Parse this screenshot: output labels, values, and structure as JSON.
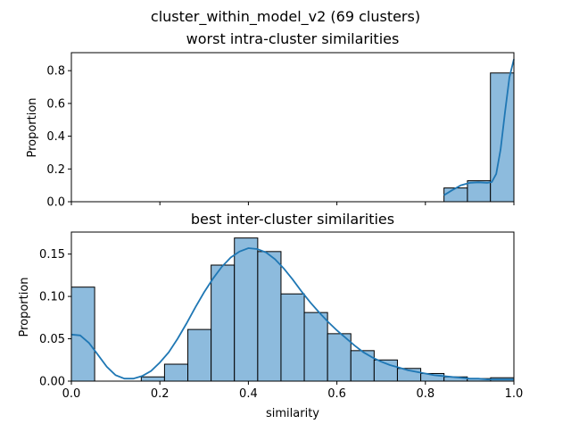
{
  "chart_data": {
    "suptitle": "cluster_within_model_v2 (69 clusters)",
    "xlabel": "similarity",
    "panels": [
      {
        "type": "bar",
        "title": "worst intra-cluster similarities",
        "ylabel": "Proportion",
        "xlim": [
          0,
          1
        ],
        "ylim": [
          0,
          0.91
        ],
        "yticks": [
          "0.0",
          "0.2",
          "0.4",
          "0.6",
          "0.8"
        ],
        "show_xticklabels": false,
        "bar_color": "#8dbbdd",
        "edge_color": "#000000",
        "line_color": "#1f77b4",
        "bins": [
          {
            "x0": 0.842,
            "x1": 0.895,
            "value": 0.084
          },
          {
            "x0": 0.895,
            "x1": 0.947,
            "value": 0.128
          },
          {
            "x0": 0.947,
            "x1": 1.0,
            "value": 0.786
          }
        ],
        "kde": [
          [
            0.842,
            0.04
          ],
          [
            0.86,
            0.07
          ],
          [
            0.88,
            0.1
          ],
          [
            0.9,
            0.115
          ],
          [
            0.92,
            0.118
          ],
          [
            0.94,
            0.115
          ],
          [
            0.95,
            0.12
          ],
          [
            0.96,
            0.17
          ],
          [
            0.97,
            0.32
          ],
          [
            0.98,
            0.55
          ],
          [
            0.99,
            0.76
          ],
          [
            1.0,
            0.87
          ]
        ]
      },
      {
        "type": "bar",
        "title": "best inter-cluster similarities",
        "ylabel": "Proportion",
        "xlim": [
          0,
          1
        ],
        "ylim": [
          0,
          0.176
        ],
        "yticks": [
          "0.00",
          "0.05",
          "0.10",
          "0.15"
        ],
        "xticks": [
          "0.0",
          "0.2",
          "0.4",
          "0.6",
          "0.8",
          "1.0"
        ],
        "show_xticklabels": true,
        "bar_color": "#8dbbdd",
        "edge_color": "#000000",
        "line_color": "#1f77b4",
        "bins": [
          {
            "x0": 0.0,
            "x1": 0.0526,
            "value": 0.111
          },
          {
            "x0": 0.0526,
            "x1": 0.1053,
            "value": 0.0
          },
          {
            "x0": 0.1053,
            "x1": 0.1579,
            "value": 0.0
          },
          {
            "x0": 0.1579,
            "x1": 0.2105,
            "value": 0.005
          },
          {
            "x0": 0.2105,
            "x1": 0.2632,
            "value": 0.02
          },
          {
            "x0": 0.2632,
            "x1": 0.3158,
            "value": 0.061
          },
          {
            "x0": 0.3158,
            "x1": 0.3684,
            "value": 0.137
          },
          {
            "x0": 0.3684,
            "x1": 0.4211,
            "value": 0.169
          },
          {
            "x0": 0.4211,
            "x1": 0.4737,
            "value": 0.153
          },
          {
            "x0": 0.4737,
            "x1": 0.5263,
            "value": 0.103
          },
          {
            "x0": 0.5263,
            "x1": 0.5789,
            "value": 0.081
          },
          {
            "x0": 0.5789,
            "x1": 0.6316,
            "value": 0.056
          },
          {
            "x0": 0.6316,
            "x1": 0.6842,
            "value": 0.036
          },
          {
            "x0": 0.6842,
            "x1": 0.7368,
            "value": 0.025
          },
          {
            "x0": 0.7368,
            "x1": 0.7895,
            "value": 0.015
          },
          {
            "x0": 0.7895,
            "x1": 0.8421,
            "value": 0.009
          },
          {
            "x0": 0.8421,
            "x1": 0.8947,
            "value": 0.005
          },
          {
            "x0": 0.8947,
            "x1": 0.9474,
            "value": 0.003
          },
          {
            "x0": 0.9474,
            "x1": 1.0,
            "value": 0.004
          }
        ],
        "kde": [
          [
            0.0,
            0.055
          ],
          [
            0.02,
            0.054
          ],
          [
            0.04,
            0.045
          ],
          [
            0.06,
            0.031
          ],
          [
            0.08,
            0.017
          ],
          [
            0.1,
            0.007
          ],
          [
            0.12,
            0.003
          ],
          [
            0.14,
            0.003
          ],
          [
            0.16,
            0.006
          ],
          [
            0.18,
            0.012
          ],
          [
            0.2,
            0.022
          ],
          [
            0.22,
            0.034
          ],
          [
            0.24,
            0.05
          ],
          [
            0.26,
            0.068
          ],
          [
            0.28,
            0.087
          ],
          [
            0.3,
            0.105
          ],
          [
            0.32,
            0.121
          ],
          [
            0.34,
            0.135
          ],
          [
            0.36,
            0.146
          ],
          [
            0.38,
            0.153
          ],
          [
            0.4,
            0.157
          ],
          [
            0.42,
            0.156
          ],
          [
            0.44,
            0.152
          ],
          [
            0.46,
            0.144
          ],
          [
            0.48,
            0.133
          ],
          [
            0.5,
            0.12
          ],
          [
            0.52,
            0.106
          ],
          [
            0.54,
            0.093
          ],
          [
            0.56,
            0.081
          ],
          [
            0.58,
            0.07
          ],
          [
            0.6,
            0.06
          ],
          [
            0.62,
            0.051
          ],
          [
            0.64,
            0.042
          ],
          [
            0.66,
            0.034
          ],
          [
            0.68,
            0.028
          ],
          [
            0.7,
            0.023
          ],
          [
            0.72,
            0.019
          ],
          [
            0.74,
            0.016
          ],
          [
            0.76,
            0.013
          ],
          [
            0.78,
            0.011
          ],
          [
            0.8,
            0.009
          ],
          [
            0.82,
            0.007
          ],
          [
            0.84,
            0.006
          ],
          [
            0.86,
            0.005
          ],
          [
            0.88,
            0.004
          ],
          [
            0.9,
            0.003
          ],
          [
            0.92,
            0.003
          ],
          [
            0.94,
            0.002
          ],
          [
            0.96,
            0.002
          ],
          [
            0.98,
            0.002
          ],
          [
            1.0,
            0.002
          ]
        ]
      }
    ]
  }
}
